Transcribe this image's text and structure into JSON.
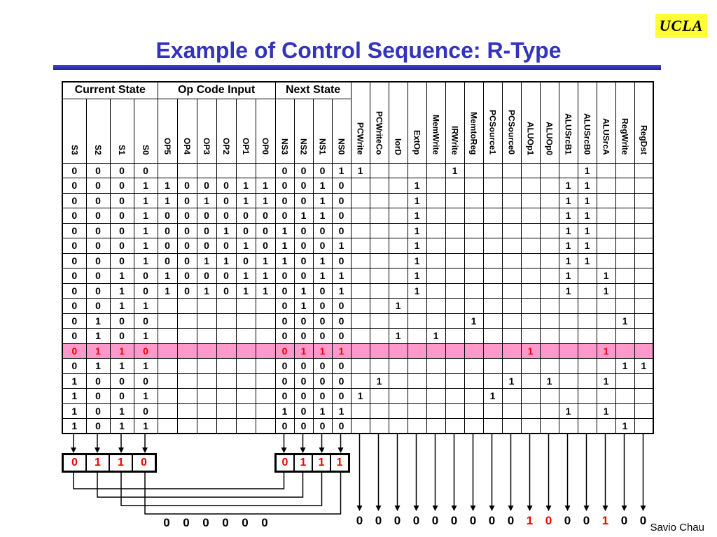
{
  "logo_text": "UCLA",
  "title": "Example of Control Sequence: R-Type",
  "author": "Savio Chau",
  "colors": {
    "title_blue": "#3333bb",
    "highlight_pink": "#ff99cc",
    "red": "#ee0000",
    "logo_yellow": "#ffff33"
  },
  "table": {
    "groups": [
      {
        "label": "Current State",
        "cols": [
          "S3",
          "S2",
          "S1",
          "S0"
        ]
      },
      {
        "label": "Op Code Input",
        "cols": [
          "OP5",
          "OP4",
          "OP3",
          "OP2",
          "OP1",
          "OP0"
        ]
      },
      {
        "label": "Next State",
        "cols": [
          "NS3",
          "NS2",
          "NS1",
          "NS0"
        ]
      }
    ],
    "signal_cols": [
      "PCWrite",
      "PCWriteCo",
      "IorD",
      "ExtOp",
      "MemWrite",
      "IRWrite",
      "MemtoReg",
      "PCSource1",
      "PCSource0",
      "ALUOp1",
      "ALUOp0",
      "ALUSrcB1",
      "ALUSrcB0",
      "ALUSrcA",
      "RegWrite",
      "RegDst"
    ],
    "rows": [
      {
        "state": "0000",
        "op": "",
        "next": "0001",
        "signals": "1....1......1...",
        "highlight": false
      },
      {
        "state": "0001",
        "op": "100011",
        "next": "0010",
        "signals": "...1.......11...",
        "highlight": false
      },
      {
        "state": "0001",
        "op": "101011",
        "next": "0010",
        "signals": "...1.......11...",
        "highlight": false
      },
      {
        "state": "0001",
        "op": "000000",
        "next": "0110",
        "signals": "...1.......11...",
        "highlight": false
      },
      {
        "state": "0001",
        "op": "000100",
        "next": "1000",
        "signals": "...1.......11...",
        "highlight": false
      },
      {
        "state": "0001",
        "op": "000010",
        "next": "1001",
        "signals": "...1.......11...",
        "highlight": false
      },
      {
        "state": "0001",
        "op": "001101",
        "next": "1010",
        "signals": "...1.......11...",
        "highlight": false
      },
      {
        "state": "0010",
        "op": "100011",
        "next": "0011",
        "signals": "...1.......1.1..",
        "highlight": false
      },
      {
        "state": "0010",
        "op": "101011",
        "next": "0101",
        "signals": "...1.......1.1..",
        "highlight": false
      },
      {
        "state": "0011",
        "op": "",
        "next": "0100",
        "signals": "..1.............",
        "highlight": false
      },
      {
        "state": "0100",
        "op": "",
        "next": "0000",
        "signals": "......1.......1.",
        "highlight": false
      },
      {
        "state": "0101",
        "op": "",
        "next": "0000",
        "signals": "..1.1...........",
        "highlight": false
      },
      {
        "state": "0110",
        "op": "",
        "next": "0111",
        "signals": ".........1...1..",
        "highlight": true
      },
      {
        "state": "0111",
        "op": "",
        "next": "0000",
        "signals": "..............11",
        "highlight": false
      },
      {
        "state": "1000",
        "op": "",
        "next": "0000",
        "signals": ".1......1.1..1..",
        "highlight": false
      },
      {
        "state": "1001",
        "op": "",
        "next": "0000",
        "signals": "1......1........",
        "highlight": false
      },
      {
        "state": "1010",
        "op": "",
        "next": "1011",
        "signals": "...........1.1..",
        "highlight": false
      },
      {
        "state": "1011",
        "op": "",
        "next": "0000",
        "signals": "..............1.",
        "highlight": false
      }
    ]
  },
  "registers": {
    "current_state_box": [
      "0",
      "1",
      "1",
      "0"
    ],
    "next_state_box": [
      "0",
      "1",
      "1",
      "1"
    ]
  },
  "bottom": {
    "opcode_values": [
      "0",
      "0",
      "0",
      "0",
      "0",
      "0"
    ],
    "signal_values": [
      "0",
      "0",
      "0",
      "0",
      "0",
      "0",
      "0",
      "0",
      "0",
      "1",
      "0",
      "0",
      "0",
      "1",
      "0",
      "0"
    ],
    "red_value_indices": [
      9,
      10,
      13
    ]
  }
}
